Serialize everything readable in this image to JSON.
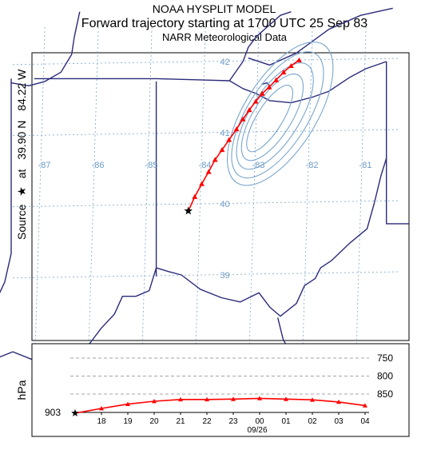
{
  "titles": {
    "line1": "NOAA HYSPLIT MODEL",
    "line2": "Forward trajectory starting at 1700 UTC 25 Sep 83",
    "line3": "NARR Meteorological Data"
  },
  "source_label": {
    "prefix": "Source",
    "star": "★",
    "at": "at",
    "lat": "39.90 N",
    "lon": "84.22 W"
  },
  "map": {
    "lat_labels": [
      "42",
      "41",
      "40",
      "39"
    ],
    "lon_labels": [
      "-87",
      "-86",
      "-85",
      "-84",
      "-83",
      "-82",
      "-81"
    ],
    "colors": {
      "border": "#2a2a7a",
      "grid": "#7aa6cc",
      "trajectory": "#ff0000",
      "contour": "#7aa6cc"
    }
  },
  "trajectory": {
    "start": {
      "lat": 39.9,
      "lon": -84.22
    },
    "points": [
      {
        "lat": 39.9,
        "lon": -84.22
      },
      {
        "lat": 40.1,
        "lon": -84.1
      },
      {
        "lat": 40.28,
        "lon": -83.97
      },
      {
        "lat": 40.45,
        "lon": -83.84
      },
      {
        "lat": 40.62,
        "lon": -83.72
      },
      {
        "lat": 40.76,
        "lon": -83.59
      },
      {
        "lat": 40.9,
        "lon": -83.46
      },
      {
        "lat": 41.05,
        "lon": -83.32
      },
      {
        "lat": 41.19,
        "lon": -83.2
      },
      {
        "lat": 41.32,
        "lon": -83.08
      },
      {
        "lat": 41.44,
        "lon": -82.96
      },
      {
        "lat": 41.55,
        "lon": -82.84
      },
      {
        "lat": 41.64,
        "lon": -82.71
      },
      {
        "lat": 41.74,
        "lon": -82.58
      },
      {
        "lat": 41.85,
        "lon": -82.44
      },
      {
        "lat": 41.94,
        "lon": -82.3
      },
      {
        "lat": 42.02,
        "lon": -82.15
      }
    ]
  },
  "chart_data": {
    "type": "line",
    "ylabel": "hPa",
    "x_ticks": [
      "18",
      "19",
      "20",
      "21",
      "22",
      "23",
      "00",
      "01",
      "02",
      "03",
      "04"
    ],
    "x_date_label": "09/26",
    "y_levels": [
      "750",
      "800",
      "850"
    ],
    "start_label": "903",
    "series": [
      {
        "x": [
          "17",
          "18",
          "19",
          "20",
          "21",
          "22",
          "23",
          "00",
          "01",
          "02",
          "03",
          "04"
        ],
        "values": [
          903,
          890,
          878,
          870,
          865,
          865,
          864,
          862,
          864,
          866,
          872,
          882
        ]
      }
    ]
  }
}
